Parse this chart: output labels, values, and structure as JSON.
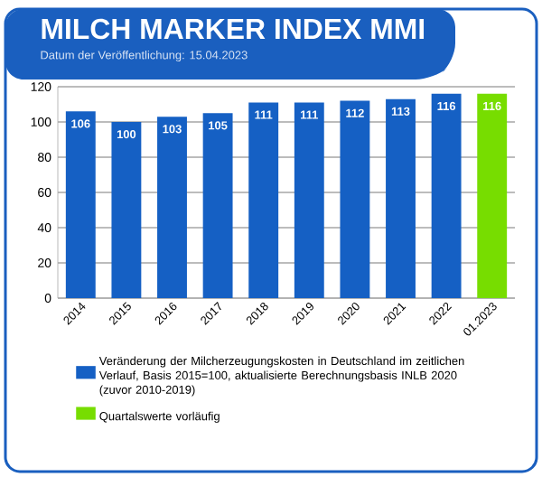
{
  "chart_data": {
    "type": "bar",
    "title": "MILCH MARKER INDEX MMI",
    "subtitle": "Datum der Veröffentlichung: 15.04.2023",
    "categories": [
      "2014",
      "2015",
      "2016",
      "2017",
      "2018",
      "2019",
      "2020",
      "2021",
      "2022",
      "01.2023"
    ],
    "series": [
      {
        "name": "Veränderung der Milcherzeugungskosten in Deutschland im zeitlichen Verlauf, Basis 2015=100, aktualisierte Berechnungsbasis INLB 2020 (zuvor 2010-2019)",
        "color": "#1560c4",
        "values": [
          106,
          100,
          103,
          105,
          111,
          111,
          112,
          113,
          116,
          null
        ]
      },
      {
        "name": "Quartalswerte vorläufig",
        "color": "#77dd00",
        "values": [
          null,
          null,
          null,
          null,
          null,
          null,
          null,
          null,
          null,
          116
        ]
      }
    ],
    "ylim": [
      0,
      120
    ],
    "yticks": [
      0,
      20,
      40,
      60,
      80,
      100,
      120
    ],
    "grid": "y",
    "legend": "bottom",
    "data_labels": true
  }
}
